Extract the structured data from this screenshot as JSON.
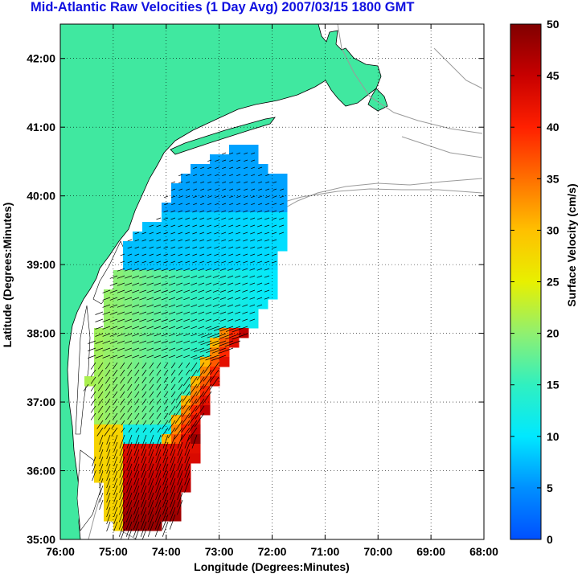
{
  "title": "Mid-Atlantic Raw Velocities (1 Day Avg) 2007/03/15 1800 GMT",
  "x_label": "Longitude (Degrees:Minutes)",
  "y_label": "Latitude (Degrees:Minutes)",
  "x_ticks": [
    "76:00",
    "75:00",
    "74:00",
    "73:00",
    "72:00",
    "71:00",
    "70:00",
    "69:00",
    "68:00"
  ],
  "y_ticks": [
    "42:00",
    "41:00",
    "40:00",
    "39:00",
    "38:00",
    "37:00",
    "36:00",
    "35:00"
  ],
  "colorbar": {
    "label": "Surface Velocity (cm/s)",
    "ticks": [
      "50",
      "45",
      "40",
      "35",
      "30",
      "25",
      "20",
      "15",
      "10",
      "5",
      "0"
    ],
    "range": [
      0,
      50
    ]
  },
  "map": {
    "x_range_deg_west": [
      76,
      68
    ],
    "y_range_deg_north": [
      35,
      42.5
    ],
    "land_color": "#40e8a0",
    "grid": "dotted"
  }
}
